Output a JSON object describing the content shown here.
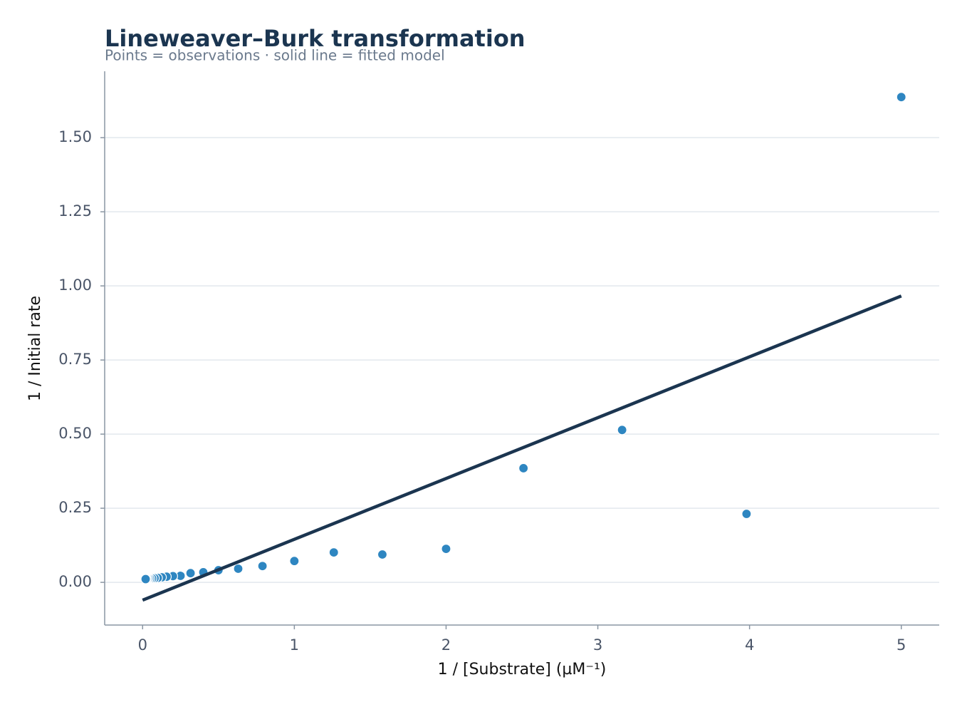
{
  "chart_data": {
    "type": "scatter",
    "title": "Lineweaver–Burk transformation",
    "subtitle": "Points = observations · solid line = fitted model",
    "x_label": "1 / [Substrate] (µM⁻¹)",
    "y_label": "1 / Initial rate",
    "xlim": [
      -0.25,
      5.25
    ],
    "ylim": [
      -0.144,
      1.724
    ],
    "xticks": [
      0,
      1,
      2,
      3,
      4,
      5
    ],
    "yticks": [
      {
        "value": 0,
        "label": "0.00"
      },
      {
        "value": 0.25,
        "label": "0.25"
      },
      {
        "value": 0.5,
        "label": "0.50"
      },
      {
        "value": 0.75,
        "label": "0.75"
      },
      {
        "value": 1,
        "label": "1.00"
      },
      {
        "value": 1.25,
        "label": "1.25"
      },
      {
        "value": 1.5,
        "label": "1.50"
      }
    ],
    "grid": true,
    "series": [
      {
        "type": "scatter",
        "color": "#2e86c1",
        "x": [
          5.0,
          3.98,
          3.16,
          2.51,
          2.0,
          1.58,
          1.26,
          1.0,
          0.79,
          0.63,
          0.5,
          0.4,
          0.316,
          0.25,
          0.2,
          0.158,
          0.126,
          0.1,
          0.079,
          0.063,
          0.05,
          0.04,
          0.032,
          0.025,
          0.02
        ],
        "values": [
          1.637,
          0.231,
          0.514,
          0.385,
          0.113,
          0.094,
          0.101,
          0.072,
          0.055,
          0.046,
          0.041,
          0.034,
          0.031,
          0.022,
          0.021,
          0.019,
          0.017,
          0.015,
          0.014,
          0.013,
          0.012,
          0.012,
          0.011,
          0.011,
          0.011
        ]
      },
      {
        "type": "line",
        "color": "#1b3550",
        "x": [
          0,
          5
        ],
        "values": [
          -0.06,
          0.966
        ]
      }
    ]
  }
}
